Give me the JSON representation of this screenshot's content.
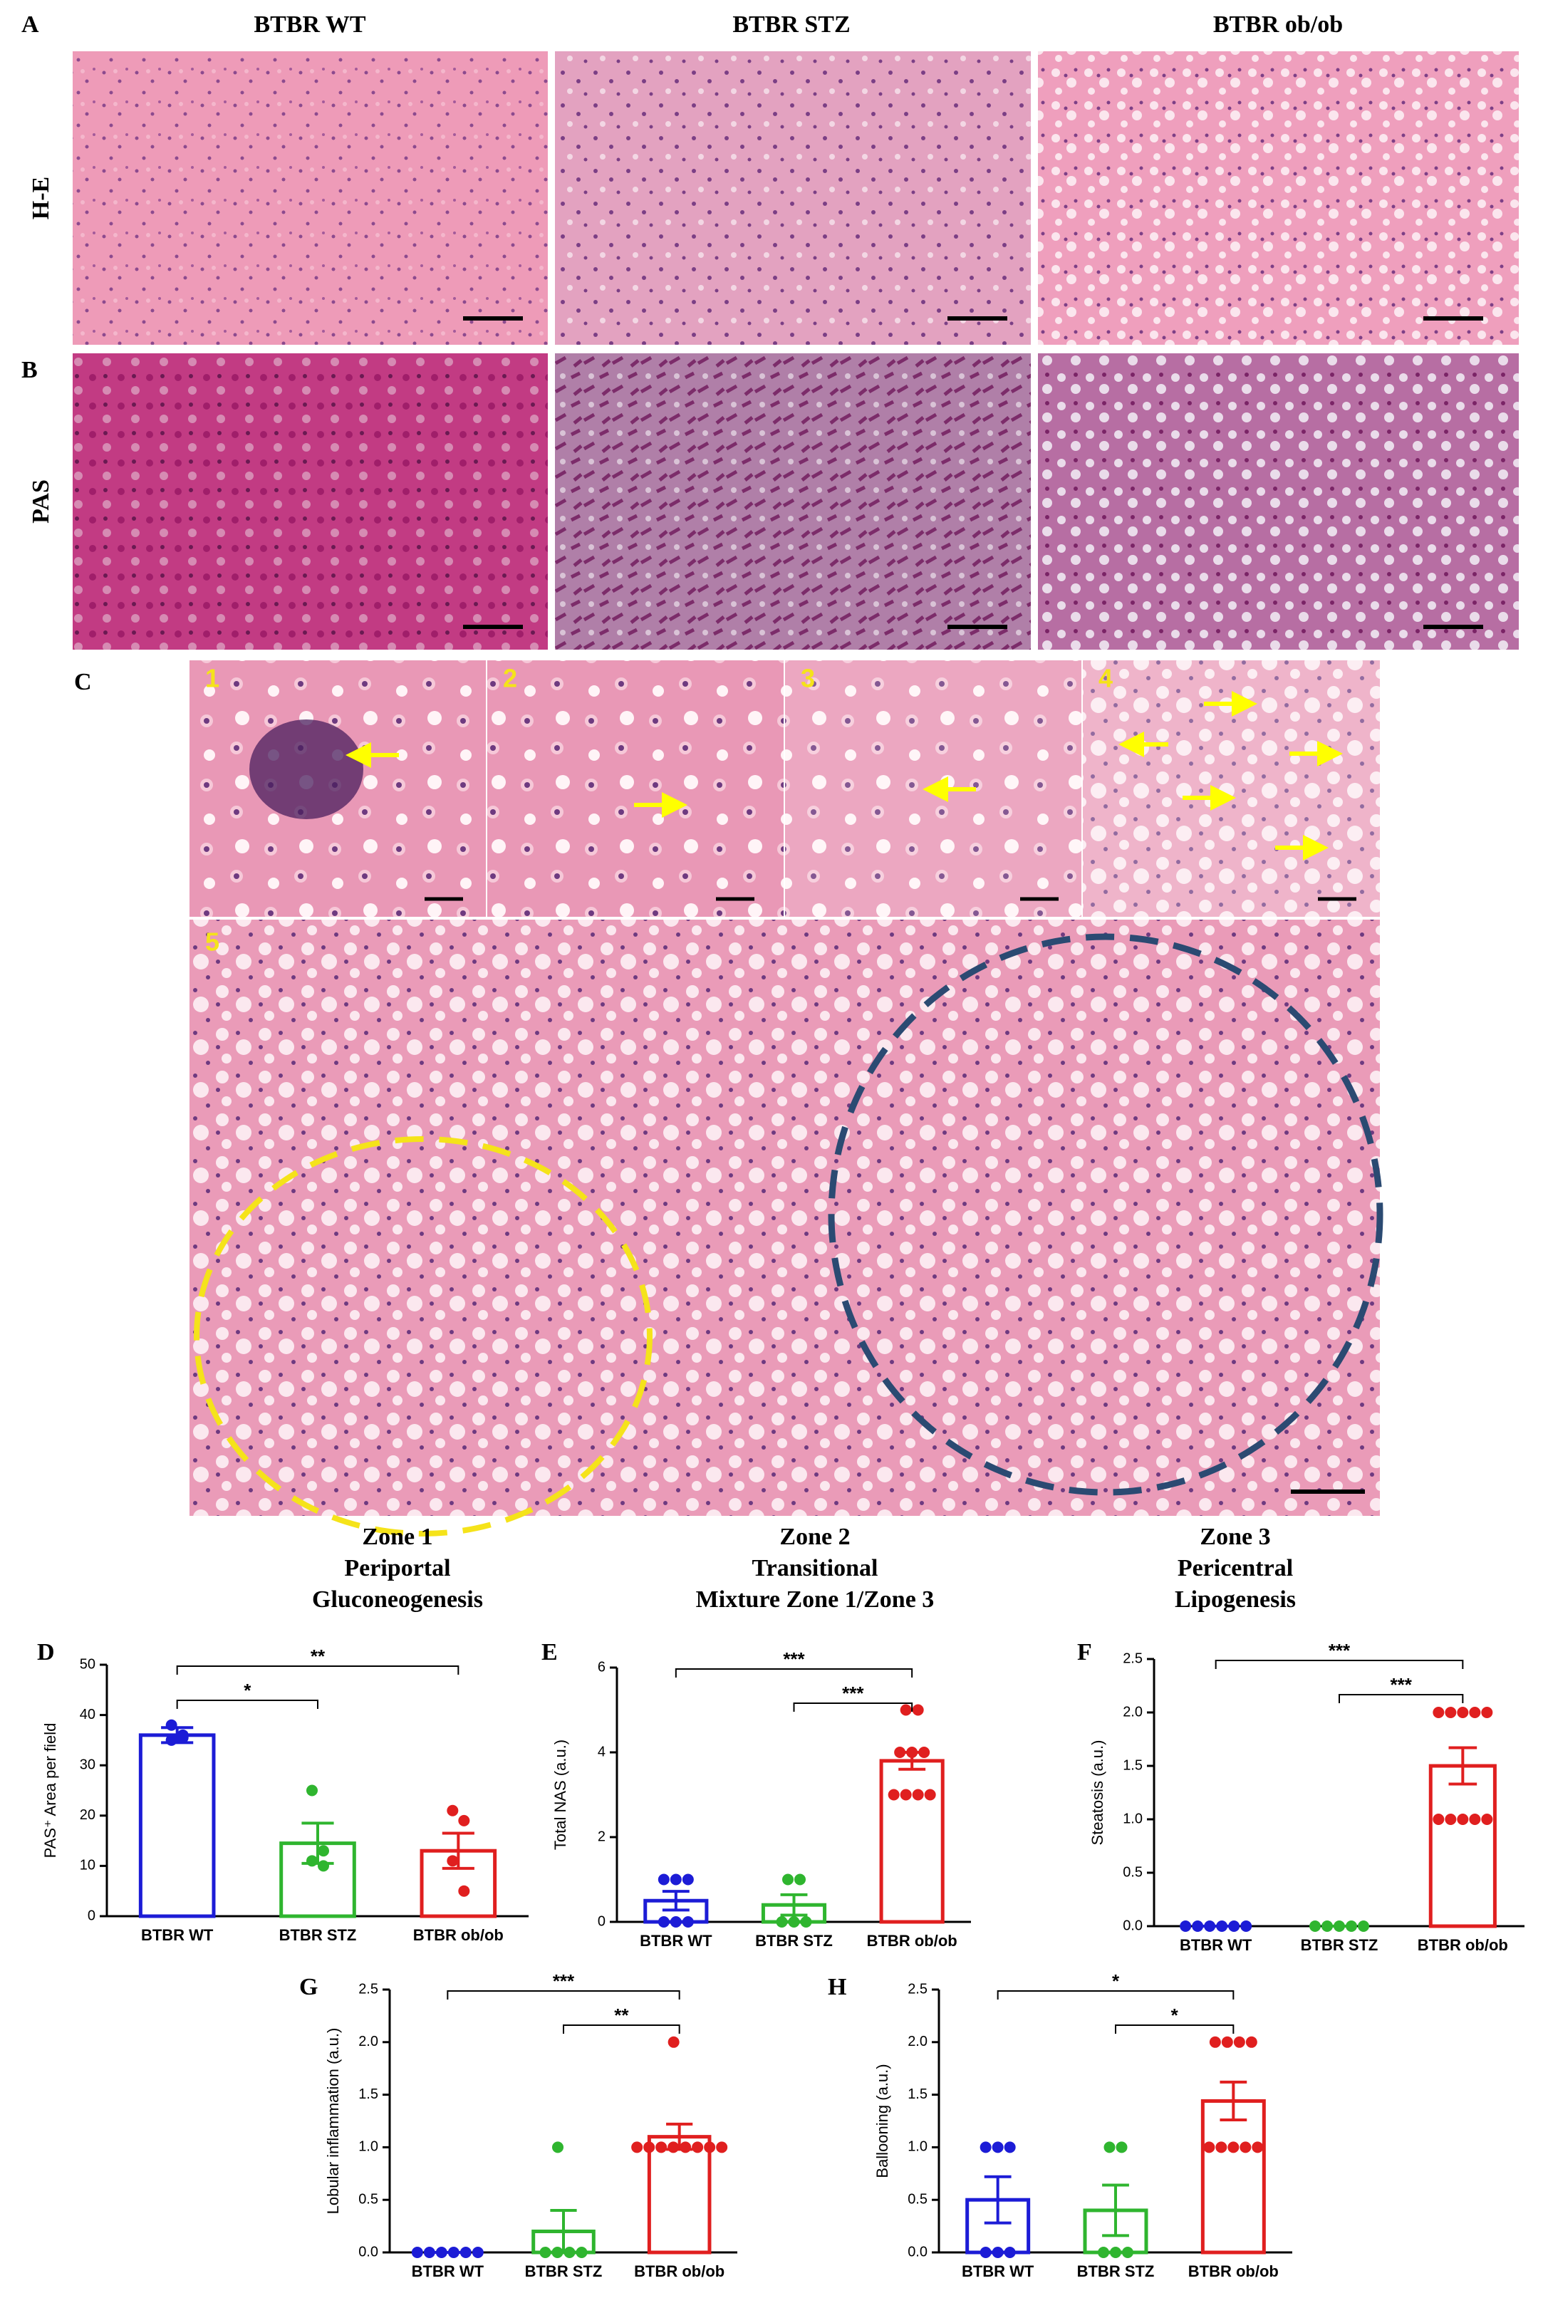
{
  "panel_labels": {
    "A": "A",
    "B": "B",
    "C": "C"
  },
  "columns": [
    "BTBR WT",
    "BTBR STZ",
    "BTBR ob/ob"
  ],
  "rows": [
    "H-E",
    "PAS"
  ],
  "insets": [
    "1",
    "2",
    "3",
    "4",
    "5"
  ],
  "zones": [
    [
      "Zone 1",
      "Periportal",
      "Gluconeogenesis"
    ],
    [
      "Zone 2",
      "Transitional",
      "Mixture Zone 1/Zone 3"
    ],
    [
      "Zone 3",
      "Pericentral",
      "Lipogenesis"
    ]
  ],
  "chart_data": [
    {
      "type": "bar",
      "panel": "D",
      "ylabel": "PAS⁺ Area per field",
      "categories": [
        "BTBR WT",
        "BTBR STZ",
        "BTBR ob/ob"
      ],
      "colors": [
        "#1c1cd6",
        "#2fb52f",
        "#e01f1f"
      ],
      "values": [
        36,
        14.5,
        13
      ],
      "errors": [
        1.5,
        4,
        3.5
      ],
      "points": [
        [
          35,
          36,
          38,
          35.5
        ],
        [
          25,
          13,
          11,
          10
        ],
        [
          21,
          19,
          11,
          5
        ]
      ],
      "ylim": [
        0,
        50
      ],
      "yticks": [
        0,
        10,
        20,
        30,
        40,
        50
      ],
      "brackets": [
        {
          "from": 0,
          "to": 2,
          "label": "**"
        },
        {
          "from": 0,
          "to": 1,
          "label": "*"
        }
      ]
    },
    {
      "type": "bar",
      "panel": "E",
      "ylabel": "Total NAS (a.u.)",
      "categories": [
        "BTBR WT",
        "BTBR STZ",
        "BTBR ob/ob"
      ],
      "colors": [
        "#1c1cd6",
        "#2fb52f",
        "#e01f1f"
      ],
      "values": [
        0.5,
        0.4,
        3.8
      ],
      "errors": [
        0.22,
        0.24,
        0.2
      ],
      "points": [
        [
          1,
          1,
          1,
          0,
          0,
          0
        ],
        [
          1,
          1,
          0,
          0,
          0
        ],
        [
          5,
          5,
          4,
          4,
          4,
          3,
          3,
          3,
          3
        ]
      ],
      "ylim": [
        0,
        6
      ],
      "yticks": [
        0,
        2,
        4,
        6
      ],
      "brackets": [
        {
          "from": 0,
          "to": 2,
          "label": "***"
        },
        {
          "from": 1,
          "to": 2,
          "label": "***"
        }
      ]
    },
    {
      "type": "bar",
      "panel": "F",
      "ylabel": "Steatosis (a.u.)",
      "categories": [
        "BTBR WT",
        "BTBR STZ",
        "BTBR ob/ob"
      ],
      "colors": [
        "#1c1cd6",
        "#2fb52f",
        "#e01f1f"
      ],
      "values": [
        0,
        0,
        1.5
      ],
      "errors": [
        0,
        0,
        0.17
      ],
      "points": [
        [
          0,
          0,
          0,
          0,
          0,
          0
        ],
        [
          0,
          0,
          0,
          0,
          0
        ],
        [
          2,
          2,
          2,
          2,
          2,
          1,
          1,
          1,
          1,
          1
        ]
      ],
      "ylim": [
        0,
        2.5
      ],
      "yticks": [
        {
          "value": 0,
          "label": "0.0"
        },
        0.5,
        {
          "value": 1,
          "label": "1.0"
        },
        1.5,
        {
          "value": 2,
          "label": "2.0"
        },
        2.5
      ],
      "brackets": [
        {
          "from": 0,
          "to": 2,
          "label": "***"
        },
        {
          "from": 1,
          "to": 2,
          "label": "***"
        }
      ]
    },
    {
      "type": "bar",
      "panel": "G",
      "ylabel": "Lobular inflammation (a.u.)",
      "categories": [
        "BTBR WT",
        "BTBR STZ",
        "BTBR ob/ob"
      ],
      "colors": [
        "#1c1cd6",
        "#2fb52f",
        "#e01f1f"
      ],
      "values": [
        0,
        0.2,
        1.1
      ],
      "errors": [
        0,
        0.2,
        0.12
      ],
      "points": [
        [
          0,
          0,
          0,
          0,
          0,
          0
        ],
        [
          1,
          0,
          0,
          0,
          0
        ],
        [
          2,
          1,
          1,
          1,
          1,
          1,
          1,
          1,
          1
        ]
      ],
      "ylim": [
        0,
        2.5
      ],
      "yticks": [
        {
          "value": 0,
          "label": "0.0"
        },
        0.5,
        {
          "value": 1,
          "label": "1.0"
        },
        1.5,
        {
          "value": 2,
          "label": "2.0"
        },
        2.5
      ],
      "brackets": [
        {
          "from": 0,
          "to": 2,
          "label": "***"
        },
        {
          "from": 1,
          "to": 2,
          "label": "**"
        }
      ]
    },
    {
      "type": "bar",
      "panel": "H",
      "ylabel": "Ballooning (a.u.)",
      "categories": [
        "BTBR WT",
        "BTBR STZ",
        "BTBR ob/ob"
      ],
      "colors": [
        "#1c1cd6",
        "#2fb52f",
        "#e01f1f"
      ],
      "values": [
        0.5,
        0.4,
        1.44
      ],
      "errors": [
        0.22,
        0.24,
        0.18
      ],
      "points": [
        [
          1,
          1,
          1,
          0,
          0,
          0
        ],
        [
          1,
          1,
          0,
          0,
          0
        ],
        [
          2,
          2,
          2,
          2,
          1,
          1,
          1,
          1,
          1
        ]
      ],
      "ylim": [
        0,
        2.5
      ],
      "yticks": [
        {
          "value": 0,
          "label": "0.0"
        },
        0.5,
        {
          "value": 1,
          "label": "1.0"
        },
        1.5,
        {
          "value": 2,
          "label": "2.0"
        },
        2.5
      ],
      "brackets": [
        {
          "from": 0,
          "to": 2,
          "label": "*"
        },
        {
          "from": 1,
          "to": 2,
          "label": "*"
        }
      ]
    }
  ]
}
